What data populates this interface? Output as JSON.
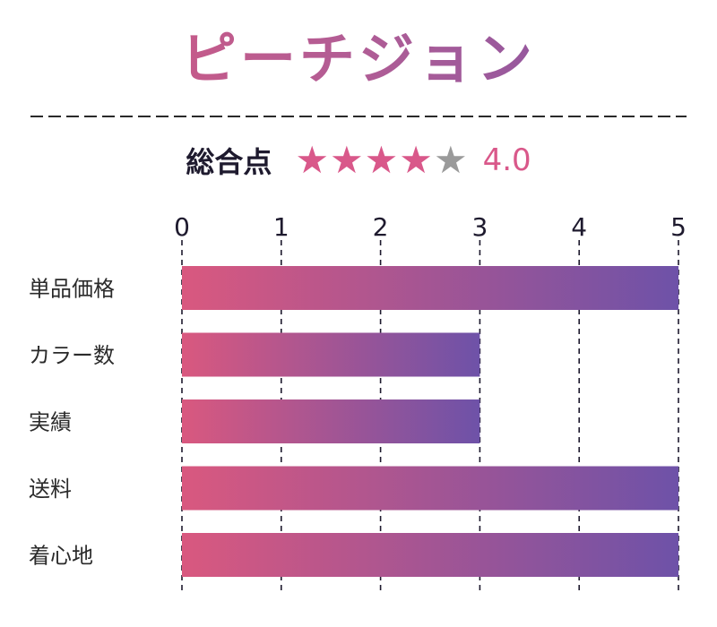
{
  "title": "ピーチジョン",
  "overall": {
    "label": "総合点",
    "rating": 4,
    "max": 5,
    "value_text": "4.0"
  },
  "colors": {
    "gradient_start": "#d9587f",
    "gradient_end": "#6e52a8",
    "star_filled": "#d9588a",
    "star_empty": "#9a9a9a"
  },
  "chart_data": {
    "type": "bar",
    "orientation": "horizontal",
    "categories": [
      "単品価格",
      "カラー数",
      "実績",
      "送料",
      "着心地"
    ],
    "values": [
      5,
      3,
      3,
      5,
      5
    ],
    "xlim": [
      0,
      5
    ],
    "ticks": [
      "0",
      "1",
      "2",
      "3",
      "4",
      "5"
    ],
    "grid": true
  }
}
